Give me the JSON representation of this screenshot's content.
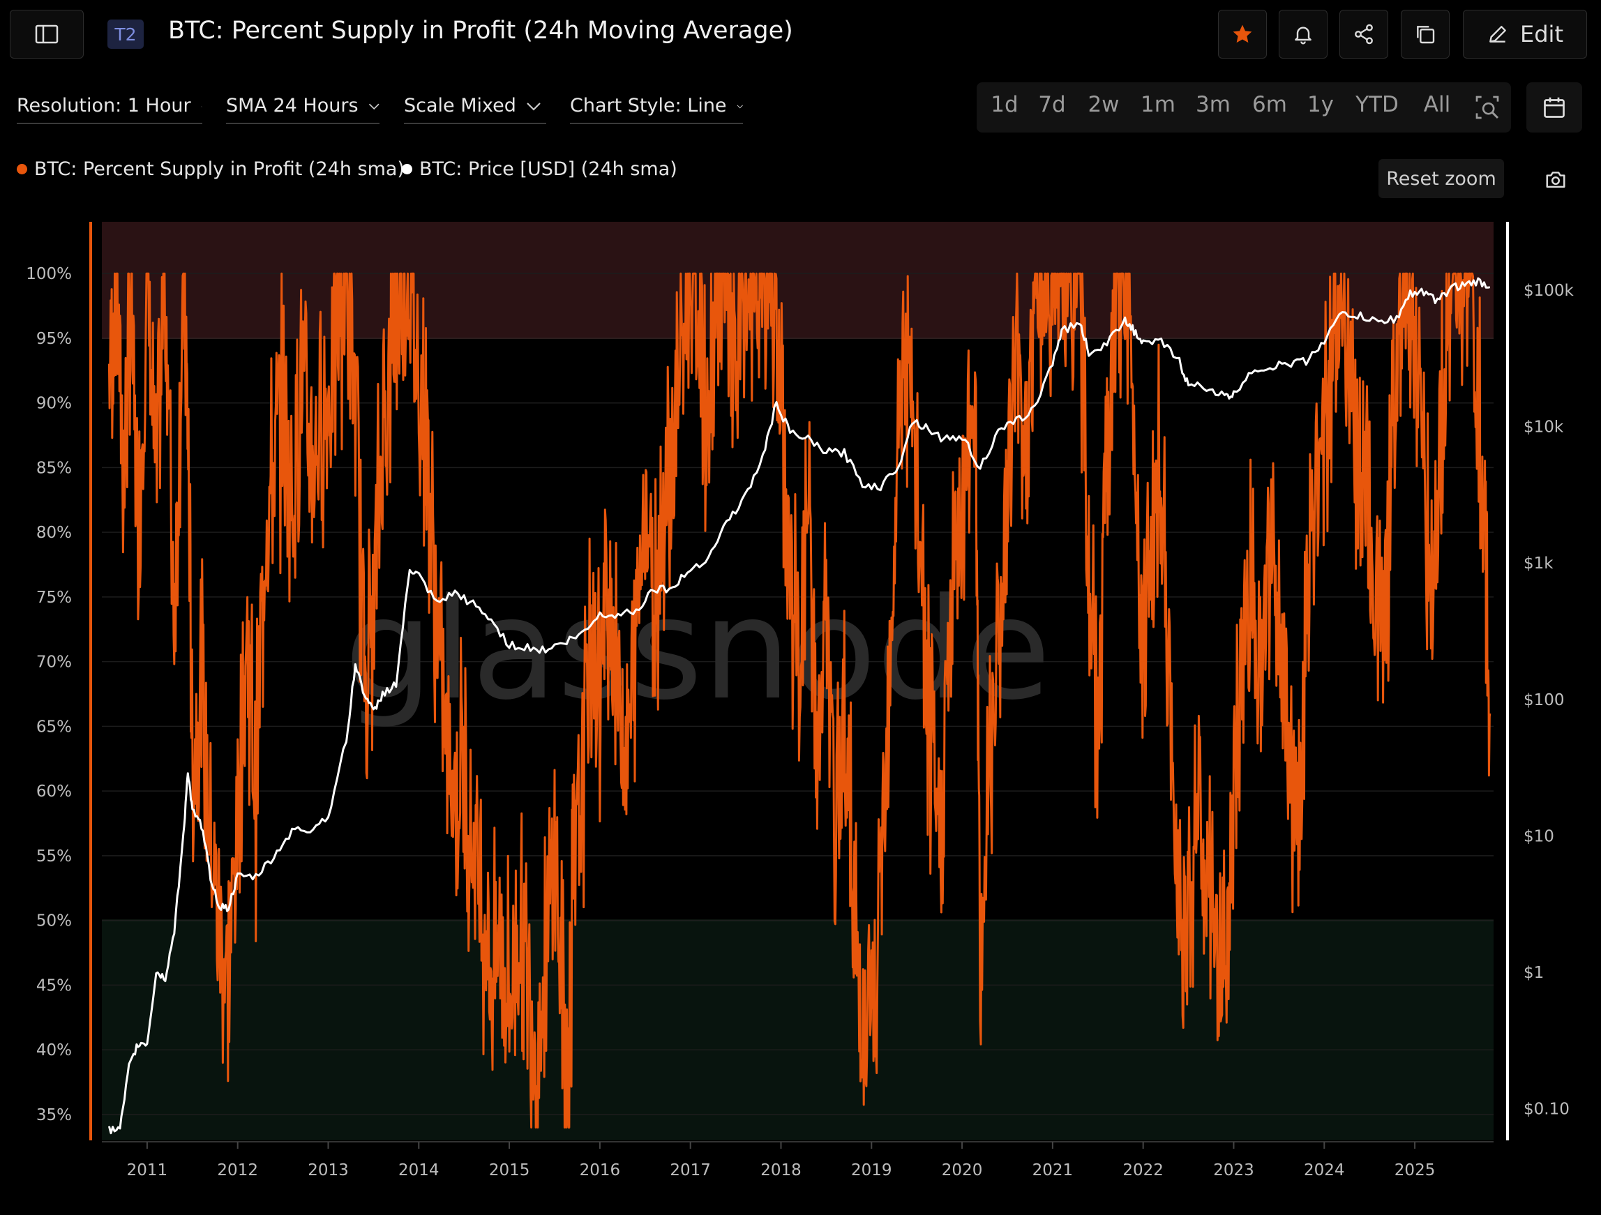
{
  "header": {
    "tier_badge": "T2",
    "title": "BTC: Percent Supply in Profit (24h Moving Average)",
    "edit_label": "Edit"
  },
  "controls": {
    "resolution": "Resolution: 1 Hour",
    "sma": "SMA 24 Hours",
    "scale": "Scale Mixed",
    "chart_style": "Chart Style: Line"
  },
  "time_ranges": [
    "1d",
    "7d",
    "2w",
    "1m",
    "3m",
    "6m",
    "1y",
    "YTD",
    "All"
  ],
  "legend": {
    "series1": "BTC: Percent Supply in Profit (24h sma)",
    "series2": "BTC: Price [USD] (24h sma)"
  },
  "reset_zoom_label": "Reset zoom",
  "colors": {
    "supply": "#e8560c",
    "price": "#ffffff",
    "star": "#e8560c",
    "upper_band": "#2a1214",
    "lower_band": "#08140e"
  },
  "icons": [
    "sidebar-toggle-icon",
    "star-icon",
    "bell-icon",
    "share-icon",
    "copy-icon",
    "pencil-icon",
    "calendar-icon",
    "zoom-select-icon",
    "camera-icon",
    "chevron-down-icon"
  ],
  "watermark": "glassnode",
  "chart_data": {
    "type": "line",
    "x_ticks": [
      "2011",
      "2012",
      "2013",
      "2014",
      "2015",
      "2016",
      "2017",
      "2018",
      "2019",
      "2020",
      "2021",
      "2022",
      "2023",
      "2024",
      "2025"
    ],
    "y_left_ticks": [
      "100%",
      "95%",
      "90%",
      "85%",
      "80%",
      "75%",
      "70%",
      "65%",
      "60%",
      "55%",
      "50%",
      "45%",
      "40%",
      "35%"
    ],
    "y_right_ticks": [
      "$100k",
      "$10k",
      "$1k",
      "$100",
      "$10",
      "$1",
      "$0.10"
    ],
    "y_left_range": [
      33,
      104
    ],
    "y_right_scale": "log",
    "bands": [
      {
        "from": 95,
        "to": 104
      },
      {
        "from": 33,
        "to": 50
      }
    ],
    "series": [
      {
        "name": "BTC: Percent Supply in Profit (24h sma)",
        "axis": "left",
        "points": [
          [
            2010.58,
            92
          ],
          [
            2010.66,
            100
          ],
          [
            2010.74,
            84
          ],
          [
            2010.82,
            98
          ],
          [
            2010.9,
            79
          ],
          [
            2011.0,
            100
          ],
          [
            2011.1,
            83
          ],
          [
            2011.2,
            100
          ],
          [
            2011.3,
            74
          ],
          [
            2011.4,
            100
          ],
          [
            2011.45,
            88
          ],
          [
            2011.5,
            62
          ],
          [
            2011.6,
            68
          ],
          [
            2011.7,
            56
          ],
          [
            2011.8,
            49
          ],
          [
            2011.9,
            46
          ],
          [
            2012.0,
            58
          ],
          [
            2012.1,
            72
          ],
          [
            2012.2,
            60
          ],
          [
            2012.3,
            80
          ],
          [
            2012.4,
            85
          ],
          [
            2012.5,
            90
          ],
          [
            2012.6,
            82
          ],
          [
            2012.7,
            92
          ],
          [
            2012.8,
            86
          ],
          [
            2012.9,
            88
          ],
          [
            2013.0,
            90
          ],
          [
            2013.1,
            96
          ],
          [
            2013.2,
            100
          ],
          [
            2013.3,
            90
          ],
          [
            2013.4,
            70
          ],
          [
            2013.5,
            74
          ],
          [
            2013.6,
            88
          ],
          [
            2013.7,
            94
          ],
          [
            2013.8,
            100
          ],
          [
            2013.9,
            100
          ],
          [
            2014.0,
            92
          ],
          [
            2014.1,
            86
          ],
          [
            2014.2,
            72
          ],
          [
            2014.3,
            64
          ],
          [
            2014.4,
            60
          ],
          [
            2014.5,
            62
          ],
          [
            2014.6,
            56
          ],
          [
            2014.7,
            52
          ],
          [
            2014.8,
            46
          ],
          [
            2014.9,
            48
          ],
          [
            2015.0,
            44
          ],
          [
            2015.1,
            50
          ],
          [
            2015.2,
            46
          ],
          [
            2015.3,
            40
          ],
          [
            2015.4,
            46
          ],
          [
            2015.5,
            56
          ],
          [
            2015.6,
            42
          ],
          [
            2015.65,
            37
          ],
          [
            2015.7,
            52
          ],
          [
            2015.8,
            60
          ],
          [
            2015.9,
            72
          ],
          [
            2016.0,
            68
          ],
          [
            2016.1,
            76
          ],
          [
            2016.2,
            68
          ],
          [
            2016.3,
            62
          ],
          [
            2016.4,
            72
          ],
          [
            2016.5,
            84
          ],
          [
            2016.6,
            75
          ],
          [
            2016.7,
            82
          ],
          [
            2016.8,
            86
          ],
          [
            2016.9,
            94
          ],
          [
            2017.0,
            100
          ],
          [
            2017.1,
            96
          ],
          [
            2017.2,
            88
          ],
          [
            2017.3,
            100
          ],
          [
            2017.4,
            98
          ],
          [
            2017.5,
            92
          ],
          [
            2017.6,
            100
          ],
          [
            2017.7,
            96
          ],
          [
            2017.8,
            100
          ],
          [
            2017.9,
            100
          ],
          [
            2018.0,
            90
          ],
          [
            2018.1,
            76
          ],
          [
            2018.2,
            70
          ],
          [
            2018.3,
            82
          ],
          [
            2018.4,
            62
          ],
          [
            2018.5,
            74
          ],
          [
            2018.6,
            56
          ],
          [
            2018.7,
            66
          ],
          [
            2018.8,
            52
          ],
          [
            2018.85,
            46
          ],
          [
            2018.95,
            40
          ],
          [
            2019.05,
            44
          ],
          [
            2019.15,
            62
          ],
          [
            2019.25,
            80
          ],
          [
            2019.35,
            94
          ],
          [
            2019.45,
            88
          ],
          [
            2019.55,
            78
          ],
          [
            2019.65,
            62
          ],
          [
            2019.75,
            56
          ],
          [
            2019.85,
            70
          ],
          [
            2019.95,
            80
          ],
          [
            2020.05,
            86
          ],
          [
            2020.15,
            92
          ],
          [
            2020.2,
            44
          ],
          [
            2020.3,
            64
          ],
          [
            2020.4,
            72
          ],
          [
            2020.5,
            82
          ],
          [
            2020.6,
            94
          ],
          [
            2020.7,
            86
          ],
          [
            2020.8,
            98
          ],
          [
            2020.9,
            100
          ],
          [
            2021.0,
            100
          ],
          [
            2021.1,
            100
          ],
          [
            2021.2,
            96
          ],
          [
            2021.3,
            100
          ],
          [
            2021.4,
            76
          ],
          [
            2021.5,
            64
          ],
          [
            2021.6,
            84
          ],
          [
            2021.7,
            98
          ],
          [
            2021.8,
            100
          ],
          [
            2021.9,
            88
          ],
          [
            2022.0,
            72
          ],
          [
            2022.1,
            78
          ],
          [
            2022.2,
            86
          ],
          [
            2022.3,
            62
          ],
          [
            2022.4,
            54
          ],
          [
            2022.5,
            50
          ],
          [
            2022.6,
            60
          ],
          [
            2022.7,
            52
          ],
          [
            2022.8,
            48
          ],
          [
            2022.9,
            46
          ],
          [
            2023.0,
            58
          ],
          [
            2023.1,
            72
          ],
          [
            2023.2,
            76
          ],
          [
            2023.3,
            70
          ],
          [
            2023.4,
            78
          ],
          [
            2023.5,
            72
          ],
          [
            2023.6,
            62
          ],
          [
            2023.7,
            58
          ],
          [
            2023.8,
            72
          ],
          [
            2023.9,
            84
          ],
          [
            2024.0,
            88
          ],
          [
            2024.1,
            94
          ],
          [
            2024.2,
            100
          ],
          [
            2024.3,
            90
          ],
          [
            2024.4,
            84
          ],
          [
            2024.5,
            80
          ],
          [
            2024.6,
            74
          ],
          [
            2024.7,
            78
          ],
          [
            2024.8,
            94
          ],
          [
            2024.9,
            100
          ],
          [
            2025.0,
            96
          ],
          [
            2025.1,
            84
          ],
          [
            2025.2,
            76
          ],
          [
            2025.3,
            90
          ],
          [
            2025.4,
            100
          ],
          [
            2025.5,
            98
          ],
          [
            2025.6,
            100
          ],
          [
            2025.7,
            90
          ],
          [
            2025.78,
            78
          ],
          [
            2025.83,
            66
          ]
        ]
      },
      {
        "name": "BTC: Price [USD] (24h sma)",
        "axis": "right",
        "points": [
          [
            2010.58,
            0.07
          ],
          [
            2010.7,
            0.07
          ],
          [
            2010.8,
            0.2
          ],
          [
            2010.9,
            0.3
          ],
          [
            2011.0,
            0.3
          ],
          [
            2011.1,
            1
          ],
          [
            2011.2,
            0.9
          ],
          [
            2011.3,
            2
          ],
          [
            2011.4,
            10
          ],
          [
            2011.45,
            30
          ],
          [
            2011.5,
            15
          ],
          [
            2011.6,
            12
          ],
          [
            2011.7,
            5
          ],
          [
            2011.8,
            3
          ],
          [
            2011.9,
            3
          ],
          [
            2012.0,
            5
          ],
          [
            2012.2,
            5
          ],
          [
            2012.4,
            7
          ],
          [
            2012.6,
            11
          ],
          [
            2012.8,
            11
          ],
          [
            2013.0,
            14
          ],
          [
            2013.2,
            50
          ],
          [
            2013.3,
            180
          ],
          [
            2013.4,
            110
          ],
          [
            2013.5,
            80
          ],
          [
            2013.6,
            110
          ],
          [
            2013.75,
            130
          ],
          [
            2013.9,
            900
          ],
          [
            2014.0,
            800
          ],
          [
            2014.2,
            500
          ],
          [
            2014.4,
            600
          ],
          [
            2014.6,
            500
          ],
          [
            2014.8,
            380
          ],
          [
            2015.0,
            250
          ],
          [
            2015.2,
            240
          ],
          [
            2015.4,
            230
          ],
          [
            2015.6,
            260
          ],
          [
            2015.8,
            300
          ],
          [
            2016.0,
            420
          ],
          [
            2016.2,
            420
          ],
          [
            2016.4,
            450
          ],
          [
            2016.6,
            650
          ],
          [
            2016.8,
            650
          ],
          [
            2017.0,
            900
          ],
          [
            2017.2,
            1100
          ],
          [
            2017.4,
            2000
          ],
          [
            2017.6,
            3000
          ],
          [
            2017.8,
            6000
          ],
          [
            2017.95,
            15000
          ],
          [
            2018.1,
            9000
          ],
          [
            2018.3,
            8000
          ],
          [
            2018.5,
            6500
          ],
          [
            2018.7,
            6400
          ],
          [
            2018.9,
            3800
          ],
          [
            2019.1,
            3600
          ],
          [
            2019.3,
            5200
          ],
          [
            2019.45,
            11000
          ],
          [
            2019.6,
            10000
          ],
          [
            2019.8,
            8000
          ],
          [
            2020.0,
            8500
          ],
          [
            2020.2,
            5000
          ],
          [
            2020.4,
            9000
          ],
          [
            2020.6,
            11000
          ],
          [
            2020.8,
            13500
          ],
          [
            2021.0,
            30000
          ],
          [
            2021.1,
            50000
          ],
          [
            2021.3,
            58000
          ],
          [
            2021.4,
            35000
          ],
          [
            2021.6,
            40000
          ],
          [
            2021.8,
            62000
          ],
          [
            2021.9,
            50000
          ],
          [
            2022.0,
            40000
          ],
          [
            2022.2,
            42000
          ],
          [
            2022.4,
            30000
          ],
          [
            2022.5,
            20000
          ],
          [
            2022.7,
            19500
          ],
          [
            2022.9,
            16500
          ],
          [
            2023.0,
            17000
          ],
          [
            2023.2,
            26000
          ],
          [
            2023.4,
            27000
          ],
          [
            2023.6,
            29000
          ],
          [
            2023.8,
            30000
          ],
          [
            2024.0,
            43000
          ],
          [
            2024.2,
            68000
          ],
          [
            2024.4,
            64000
          ],
          [
            2024.6,
            58000
          ],
          [
            2024.8,
            62000
          ],
          [
            2024.95,
            95000
          ],
          [
            2025.1,
            97000
          ],
          [
            2025.25,
            82000
          ],
          [
            2025.4,
            105000
          ],
          [
            2025.55,
            108000
          ],
          [
            2025.7,
            115000
          ],
          [
            2025.83,
            105000
          ]
        ]
      }
    ]
  }
}
